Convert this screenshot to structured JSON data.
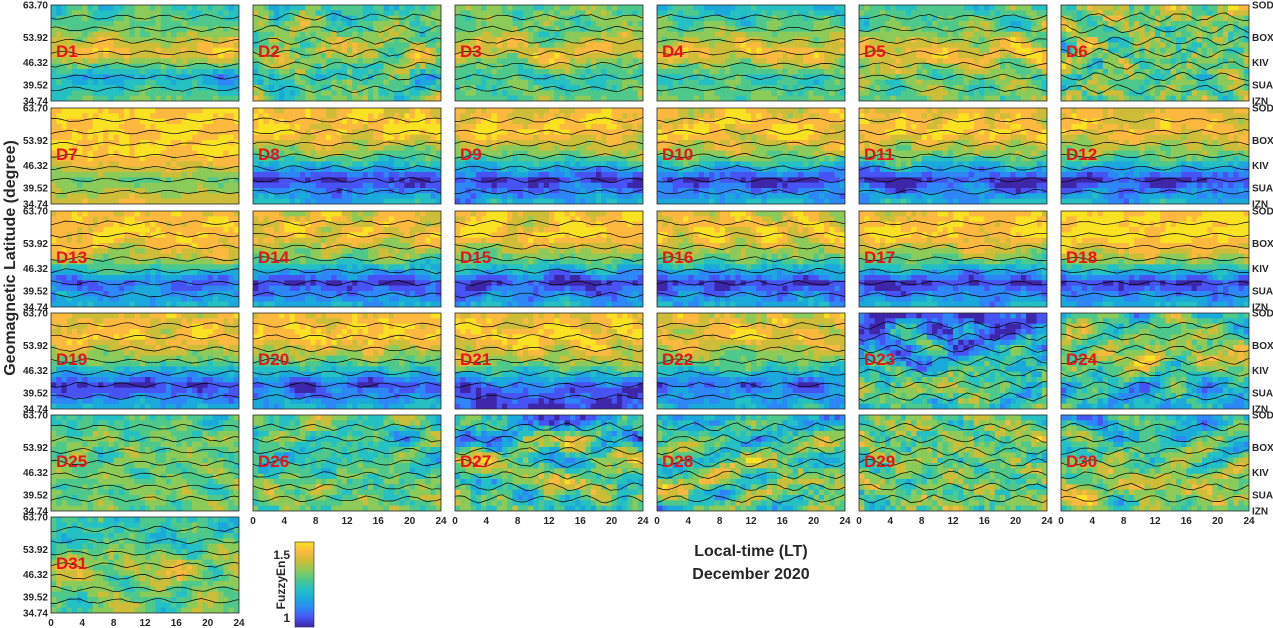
{
  "figure": {
    "ylabel": "Geomagnetic Latitude (degree)",
    "xlabel": "Local-time (LT)",
    "period": "December 2020",
    "colorbar": {
      "label": "FuzzyEn",
      "ticks": [
        "1.5",
        "1"
      ],
      "range": [
        0.9,
        1.6
      ]
    }
  },
  "colors": {
    "colormap": [
      "#3e26a8",
      "#4853f4",
      "#2e87f7",
      "#1ba9dc",
      "#25c0c3",
      "#4ec88b",
      "#8cca59",
      "#cdbd38",
      "#fcb93f",
      "#f9e222"
    ],
    "day_label": "#e8141c",
    "contour_line": "#000000"
  },
  "chart_data": {
    "type": "heatmap",
    "title": "",
    "xlabel": "Local-time (LT)",
    "ylabel": "Geomagnetic Latitude (degree)",
    "xlim": [
      0,
      24
    ],
    "ylim": [
      34.74,
      63.7
    ],
    "x_ticks": [
      "0",
      "4",
      "8",
      "12",
      "16",
      "20",
      "24"
    ],
    "y_ticks": [
      "63.70",
      "53.92",
      "46.32",
      "39.52",
      "34.74"
    ],
    "stations": [
      "SOD",
      "BOX",
      "KIV",
      "SUA",
      "IZN"
    ],
    "station_latitudes": [
      63.7,
      53.92,
      46.32,
      39.52,
      34.74
    ],
    "value_label": "FuzzyEn",
    "value_range": [
      1.0,
      1.5
    ],
    "days": [
      {
        "label": "D1",
        "profile": [
          1.25,
          1.3,
          1.42,
          1.18,
          1.3
        ],
        "variability": 0.06
      },
      {
        "label": "D2",
        "profile": [
          1.25,
          1.3,
          1.35,
          1.25,
          1.3
        ],
        "variability": 0.12
      },
      {
        "label": "D3",
        "profile": [
          1.3,
          1.3,
          1.4,
          1.25,
          1.3
        ],
        "variability": 0.08
      },
      {
        "label": "D4",
        "profile": [
          1.2,
          1.3,
          1.42,
          1.25,
          1.3
        ],
        "variability": 0.06
      },
      {
        "label": "D5",
        "profile": [
          1.25,
          1.3,
          1.42,
          1.3,
          1.3
        ],
        "variability": 0.08
      },
      {
        "label": "D6",
        "profile": [
          1.35,
          1.3,
          1.3,
          1.3,
          1.3
        ],
        "variability": 0.16
      },
      {
        "label": "D7",
        "profile": [
          1.45,
          1.45,
          1.45,
          1.3,
          1.4
        ],
        "variability": 0.04
      },
      {
        "label": "D8",
        "profile": [
          1.42,
          1.45,
          1.3,
          1.05,
          1.2
        ],
        "variability": 0.07
      },
      {
        "label": "D9",
        "profile": [
          1.4,
          1.45,
          1.3,
          1.05,
          1.2
        ],
        "variability": 0.07
      },
      {
        "label": "D10",
        "profile": [
          1.4,
          1.45,
          1.32,
          1.05,
          1.2
        ],
        "variability": 0.07
      },
      {
        "label": "D11",
        "profile": [
          1.4,
          1.45,
          1.3,
          1.05,
          1.2
        ],
        "variability": 0.07
      },
      {
        "label": "D12",
        "profile": [
          1.4,
          1.42,
          1.3,
          1.05,
          1.2
        ],
        "variability": 0.06
      },
      {
        "label": "D13",
        "profile": [
          1.42,
          1.45,
          1.35,
          1.1,
          1.2
        ],
        "variability": 0.06
      },
      {
        "label": "D14",
        "profile": [
          1.4,
          1.42,
          1.3,
          1.05,
          1.2
        ],
        "variability": 0.07
      },
      {
        "label": "D15",
        "profile": [
          1.42,
          1.45,
          1.3,
          1.05,
          1.2
        ],
        "variability": 0.07
      },
      {
        "label": "D16",
        "profile": [
          1.4,
          1.43,
          1.3,
          1.05,
          1.2
        ],
        "variability": 0.07
      },
      {
        "label": "D17",
        "profile": [
          1.42,
          1.45,
          1.3,
          1.05,
          1.2
        ],
        "variability": 0.06
      },
      {
        "label": "D18",
        "profile": [
          1.45,
          1.48,
          1.35,
          1.05,
          1.2
        ],
        "variability": 0.05
      },
      {
        "label": "D19",
        "profile": [
          1.4,
          1.43,
          1.3,
          1.05,
          1.2
        ],
        "variability": 0.07
      },
      {
        "label": "D20",
        "profile": [
          1.42,
          1.45,
          1.3,
          1.08,
          1.2
        ],
        "variability": 0.07
      },
      {
        "label": "D21",
        "profile": [
          1.4,
          1.45,
          1.35,
          1.1,
          1.05
        ],
        "variability": 0.07
      },
      {
        "label": "D22",
        "profile": [
          1.38,
          1.42,
          1.3,
          1.1,
          1.2
        ],
        "variability": 0.07
      },
      {
        "label": "D23",
        "profile": [
          1.05,
          1.15,
          1.2,
          1.3,
          1.25
        ],
        "variability": 0.14
      },
      {
        "label": "D24",
        "profile": [
          1.25,
          1.3,
          1.35,
          1.2,
          1.2
        ],
        "variability": 0.12
      },
      {
        "label": "D25",
        "profile": [
          1.25,
          1.3,
          1.3,
          1.3,
          1.3
        ],
        "variability": 0.08
      },
      {
        "label": "D26",
        "profile": [
          1.3,
          1.25,
          1.25,
          1.3,
          1.3
        ],
        "variability": 0.1
      },
      {
        "label": "D27",
        "profile": [
          1.15,
          1.25,
          1.3,
          1.3,
          1.25
        ],
        "variability": 0.14
      },
      {
        "label": "D28",
        "profile": [
          1.2,
          1.25,
          1.3,
          1.3,
          1.25
        ],
        "variability": 0.14
      },
      {
        "label": "D29",
        "profile": [
          1.3,
          1.3,
          1.3,
          1.3,
          1.3
        ],
        "variability": 0.14
      },
      {
        "label": "D30",
        "profile": [
          1.2,
          1.25,
          1.3,
          1.35,
          1.3
        ],
        "variability": 0.12
      },
      {
        "label": "D31",
        "profile": [
          1.25,
          1.25,
          1.35,
          1.3,
          1.3
        ],
        "variability": 0.08
      }
    ]
  }
}
